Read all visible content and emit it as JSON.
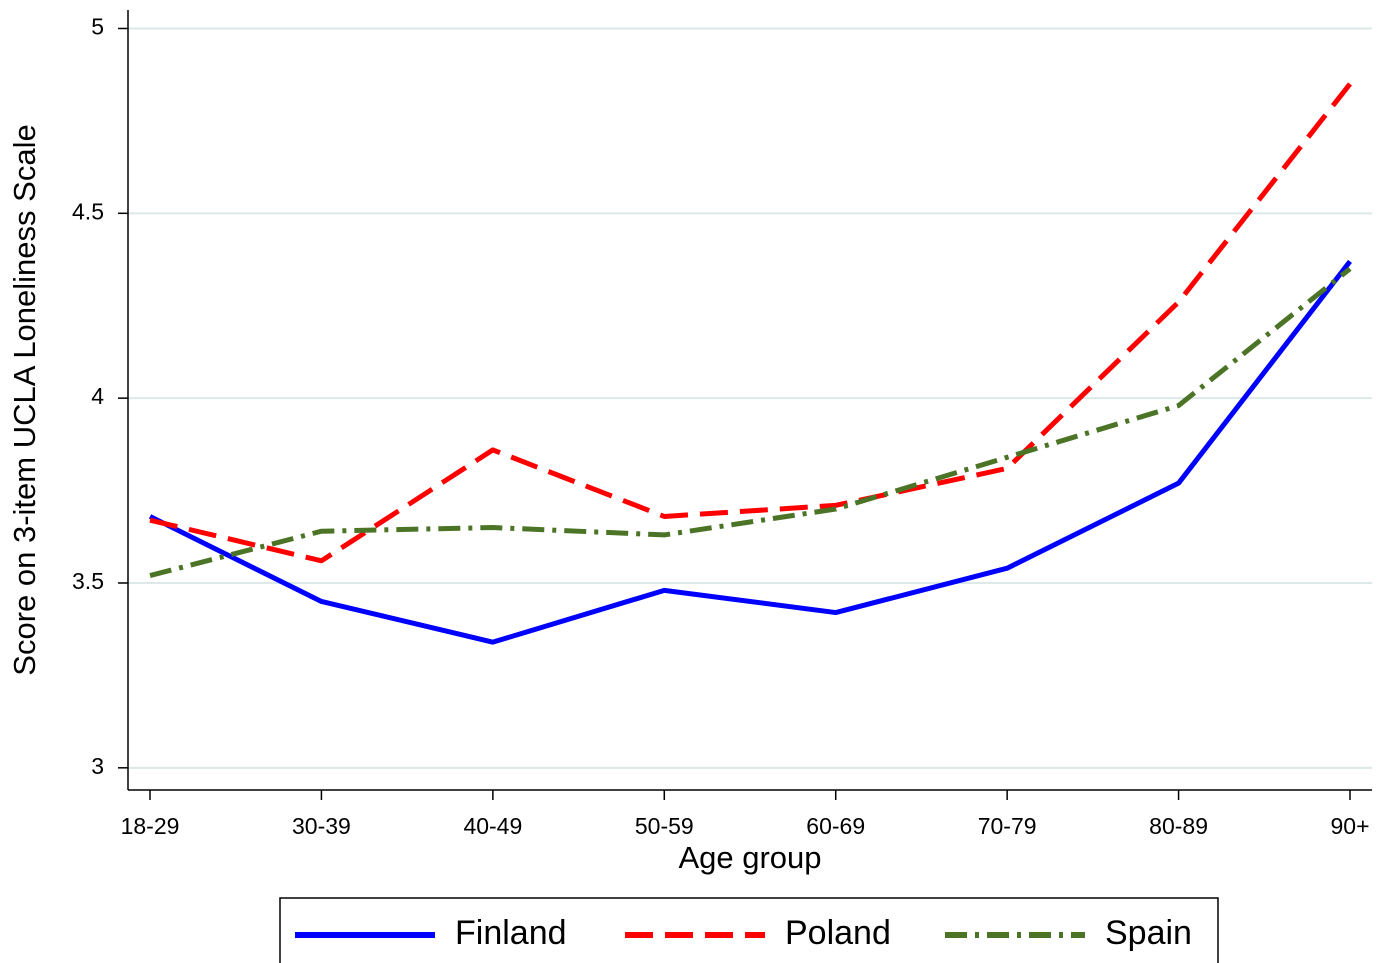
{
  "chart_data": {
    "type": "line",
    "x_label": "Age group",
    "y_label": "Score on 3-item UCLA Loneliness Scale",
    "categories": [
      "18-29",
      "30-39",
      "40-49",
      "50-59",
      "60-69",
      "70-79",
      "80-89",
      "90+"
    ],
    "series": [
      {
        "name": "Finland",
        "color": "#0000ff",
        "dash": "solid",
        "values": [
          3.68,
          3.45,
          3.34,
          3.48,
          3.42,
          3.54,
          3.77,
          4.37
        ]
      },
      {
        "name": "Poland",
        "color": "#ff0000",
        "dash": "dash",
        "values": [
          3.67,
          3.56,
          3.86,
          3.68,
          3.71,
          3.81,
          4.26,
          4.85
        ]
      },
      {
        "name": "Spain",
        "color": "#4c7426",
        "dash": "dashdot",
        "values": [
          3.52,
          3.64,
          3.65,
          3.63,
          3.7,
          3.84,
          3.98,
          4.35
        ]
      }
    ],
    "ylim": [
      2.94,
      5.05
    ],
    "yticks": [
      3,
      3.5,
      4,
      4.5,
      5
    ],
    "grid": true,
    "legend": "bottom"
  }
}
